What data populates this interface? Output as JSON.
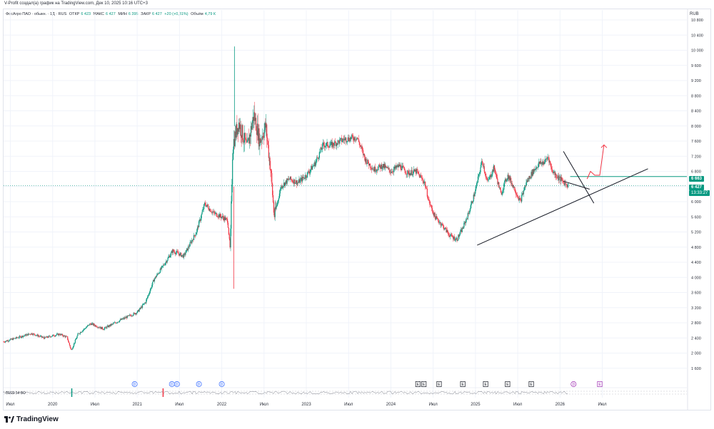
{
  "top_credit": "V-Profit создал(а) график на TradingView.com, Дек 10, 2025 10:16 UTC+3",
  "legend": {
    "symbol": "ФосАгро ПАО · обыкн. · 1Д · RUS",
    "open_label": "ОТКР",
    "open_value": "6 423",
    "high_label": "МАКС",
    "high_value": "6 427",
    "low_label": "МИН",
    "low_value": "6 395",
    "close_label": "ЗАКР",
    "close_value": "6 427",
    "change": "+20 (+0,31%)",
    "volume_label": "Объём",
    "volume_value": "4,79 К"
  },
  "currency": "RUB",
  "price_tags": {
    "target_price": "6 663",
    "last_price": "6 427",
    "countdown": "13:33:27"
  },
  "indicator_label": "80/20 14 ВО",
  "footer_logo": "TradingView",
  "colors": {
    "up": "#089981",
    "down": "#f23645",
    "trendline": "#131722",
    "arrow": "#f23645",
    "grid": "#f0f3fa",
    "dividend_badge": "#2962ff",
    "earnings_badge": "#131722",
    "future_badge": "#9c27b0"
  },
  "chart_data": {
    "type": "candlestick",
    "title": "",
    "xlabel": "",
    "ylabel": "",
    "ylim": [
      1200,
      10800
    ],
    "yticks": [
      1600,
      2000,
      2400,
      2800,
      3200,
      3600,
      4000,
      4400,
      4800,
      5200,
      5600,
      6000,
      6400,
      6800,
      7200,
      7600,
      8000,
      8400,
      8800,
      9200,
      9600,
      10000,
      10400,
      10800
    ],
    "ytick_labels": [
      "1 600",
      "2 000",
      "2 400",
      "2 800",
      "3 200",
      "3 600",
      "4 000",
      "4 400",
      "4 800",
      "5 200",
      "5 600",
      "6 000",
      "6 400",
      "6 800",
      "7 200",
      "7 600",
      "8 000",
      "8 400",
      "8 800",
      "9 200",
      "9 600",
      "10 000",
      "10 400",
      "10 800"
    ],
    "xlim": [
      2019.42,
      2027.5
    ],
    "xticks": [
      {
        "t": 2019.5,
        "label": "Июл"
      },
      {
        "t": 2020.0,
        "label": "2020"
      },
      {
        "t": 2020.5,
        "label": "Июл"
      },
      {
        "t": 2021.0,
        "label": "2021"
      },
      {
        "t": 2021.5,
        "label": "Июл"
      },
      {
        "t": 2022.0,
        "label": "2022"
      },
      {
        "t": 2022.5,
        "label": "Июл"
      },
      {
        "t": 2023.0,
        "label": "2023"
      },
      {
        "t": 2023.5,
        "label": "Июл"
      },
      {
        "t": 2024.0,
        "label": "2024"
      },
      {
        "t": 2024.5,
        "label": "Июл"
      },
      {
        "t": 2025.0,
        "label": "2025"
      },
      {
        "t": 2025.5,
        "label": "Июл"
      },
      {
        "t": 2026.0,
        "label": "2026"
      },
      {
        "t": 2026.5,
        "label": "Июл"
      }
    ],
    "price_path": [
      [
        2019.42,
        2300
      ],
      [
        2019.6,
        2420
      ],
      [
        2019.75,
        2520
      ],
      [
        2019.9,
        2400
      ],
      [
        2020.0,
        2460
      ],
      [
        2020.08,
        2500
      ],
      [
        2020.17,
        2420
      ],
      [
        2020.22,
        2070
      ],
      [
        2020.3,
        2500
      ],
      [
        2020.45,
        2780
      ],
      [
        2020.6,
        2640
      ],
      [
        2020.8,
        2870
      ],
      [
        2021.0,
        3080
      ],
      [
        2021.1,
        3350
      ],
      [
        2021.2,
        3950
      ],
      [
        2021.3,
        4280
      ],
      [
        2021.42,
        4700
      ],
      [
        2021.55,
        4560
      ],
      [
        2021.7,
        5200
      ],
      [
        2021.8,
        5950
      ],
      [
        2021.9,
        5700
      ],
      [
        2022.0,
        5600
      ],
      [
        2022.07,
        5500
      ],
      [
        2022.1,
        4700
      ],
      [
        2022.13,
        7500
      ],
      [
        2022.2,
        8100
      ],
      [
        2022.3,
        7400
      ],
      [
        2022.38,
        8300
      ],
      [
        2022.45,
        7600
      ],
      [
        2022.52,
        8000
      ],
      [
        2022.58,
        6800
      ],
      [
        2022.62,
        5600
      ],
      [
        2022.7,
        6400
      ],
      [
        2022.8,
        6600
      ],
      [
        2022.9,
        6500
      ],
      [
        2023.0,
        6700
      ],
      [
        2023.1,
        7000
      ],
      [
        2023.2,
        7500
      ],
      [
        2023.3,
        7500
      ],
      [
        2023.45,
        7650
      ],
      [
        2023.6,
        7700
      ],
      [
        2023.7,
        7100
      ],
      [
        2023.8,
        6850
      ],
      [
        2023.9,
        6950
      ],
      [
        2024.0,
        6800
      ],
      [
        2024.1,
        6950
      ],
      [
        2024.2,
        6750
      ],
      [
        2024.3,
        6800
      ],
      [
        2024.4,
        6500
      ],
      [
        2024.45,
        6000
      ],
      [
        2024.52,
        5600
      ],
      [
        2024.6,
        5400
      ],
      [
        2024.7,
        5100
      ],
      [
        2024.78,
        5000
      ],
      [
        2024.85,
        5300
      ],
      [
        2024.92,
        5700
      ],
      [
        2025.0,
        6300
      ],
      [
        2025.08,
        7100
      ],
      [
        2025.14,
        6500
      ],
      [
        2025.22,
        6900
      ],
      [
        2025.3,
        6200
      ],
      [
        2025.38,
        6700
      ],
      [
        2025.45,
        6400
      ],
      [
        2025.53,
        6000
      ],
      [
        2025.6,
        6500
      ],
      [
        2025.68,
        6800
      ],
      [
        2025.75,
        7000
      ],
      [
        2025.82,
        7050
      ],
      [
        2025.86,
        7200
      ],
      [
        2025.9,
        6850
      ],
      [
        2025.95,
        6700
      ],
      [
        2026.0,
        6600
      ],
      [
        2026.05,
        6500
      ],
      [
        2026.1,
        6430
      ]
    ],
    "spikes": [
      {
        "t": 2022.15,
        "high": 10100,
        "low": 3700
      }
    ],
    "last_price": 6427,
    "target_level": 6663,
    "annotations": {
      "support_trendline": {
        "from": [
          2025.02,
          4850
        ],
        "to": [
          2027.04,
          6870
        ]
      },
      "triangle_upper": {
        "from": [
          2026.04,
          7330
        ],
        "to": [
          2026.4,
          5960
        ]
      },
      "triangle_lower": {
        "from": [
          2026.04,
          6540
        ],
        "to": [
          2026.35,
          6330
        ]
      },
      "projection_arrow": [
        [
          2026.32,
          6600
        ],
        [
          2026.36,
          6800
        ],
        [
          2026.41,
          6700
        ],
        [
          2026.47,
          6700
        ],
        [
          2026.52,
          7500
        ]
      ]
    },
    "event_markers": [
      {
        "t": 2020.97,
        "label": "D",
        "kind": "dividend"
      },
      {
        "t": 2021.41,
        "label": "D",
        "kind": "dividend"
      },
      {
        "t": 2021.47,
        "label": "D",
        "kind": "dividend"
      },
      {
        "t": 2021.73,
        "label": "D",
        "kind": "dividend"
      },
      {
        "t": 2022.0,
        "label": "D",
        "kind": "dividend"
      },
      {
        "t": 2024.32,
        "label": "E",
        "kind": "earnings"
      },
      {
        "t": 2024.39,
        "label": "E",
        "kind": "earnings"
      },
      {
        "t": 2024.57,
        "label": "E",
        "kind": "earnings"
      },
      {
        "t": 2024.85,
        "label": "E",
        "kind": "earnings"
      },
      {
        "t": 2025.12,
        "label": "E",
        "kind": "earnings"
      },
      {
        "t": 2025.38,
        "label": "E",
        "kind": "earnings"
      },
      {
        "t": 2025.66,
        "label": "E",
        "kind": "earnings"
      },
      {
        "t": 2026.16,
        "label": "D",
        "kind": "future"
      },
      {
        "t": 2026.47,
        "label": "E",
        "kind": "future"
      }
    ]
  }
}
